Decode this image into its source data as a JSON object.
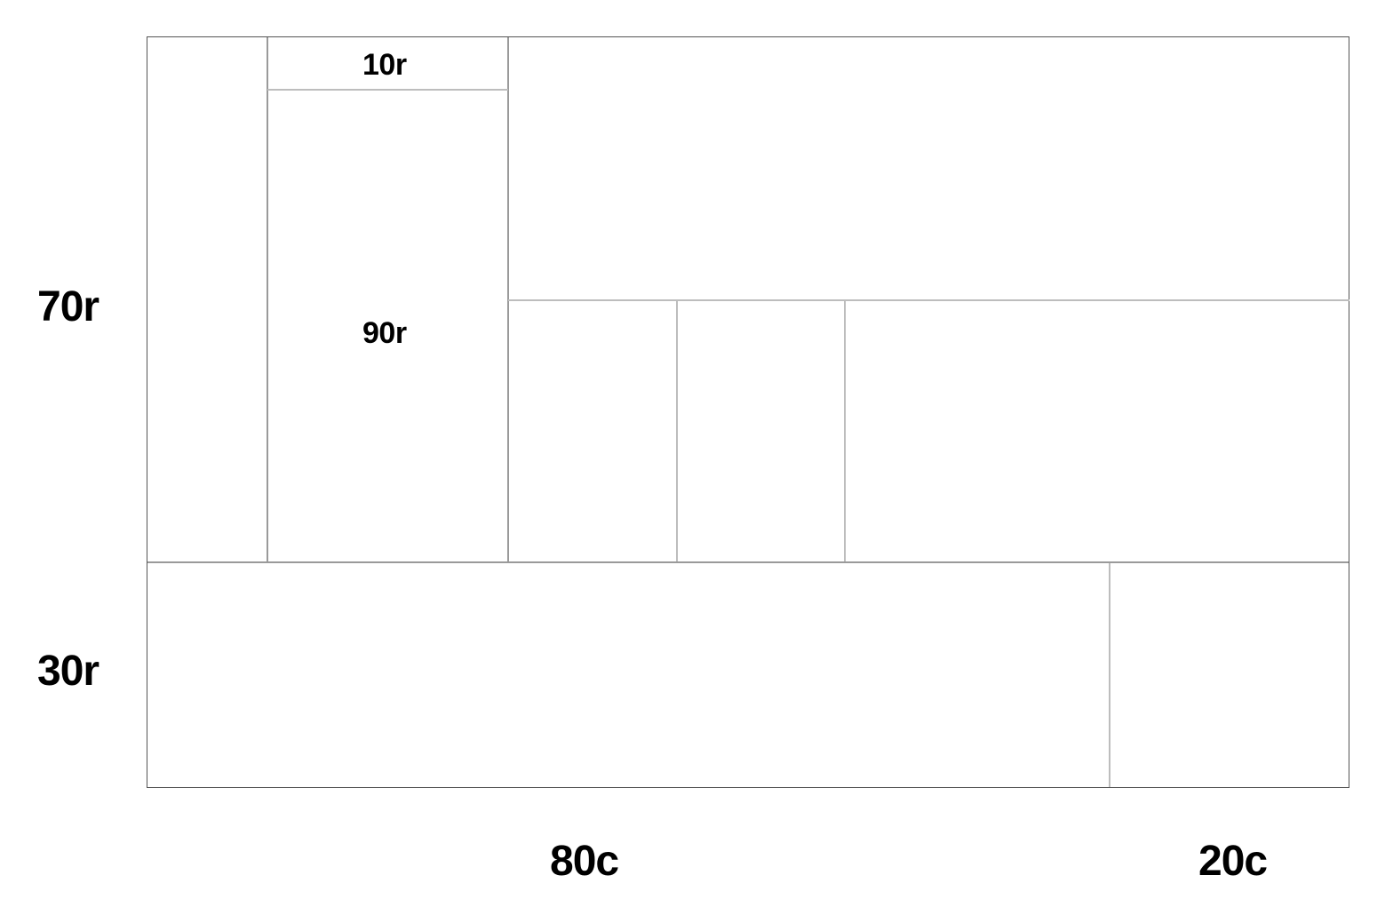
{
  "row_labels": {
    "top": "70r",
    "bottom": "30r"
  },
  "column_labels": {
    "left": "80c",
    "right": "20c"
  },
  "nested_labels": {
    "upper": "10r",
    "lower": "90r"
  },
  "colors": {
    "outer_border": "#555555",
    "inner_lines": "#bdbdbd",
    "text": "#000000"
  }
}
